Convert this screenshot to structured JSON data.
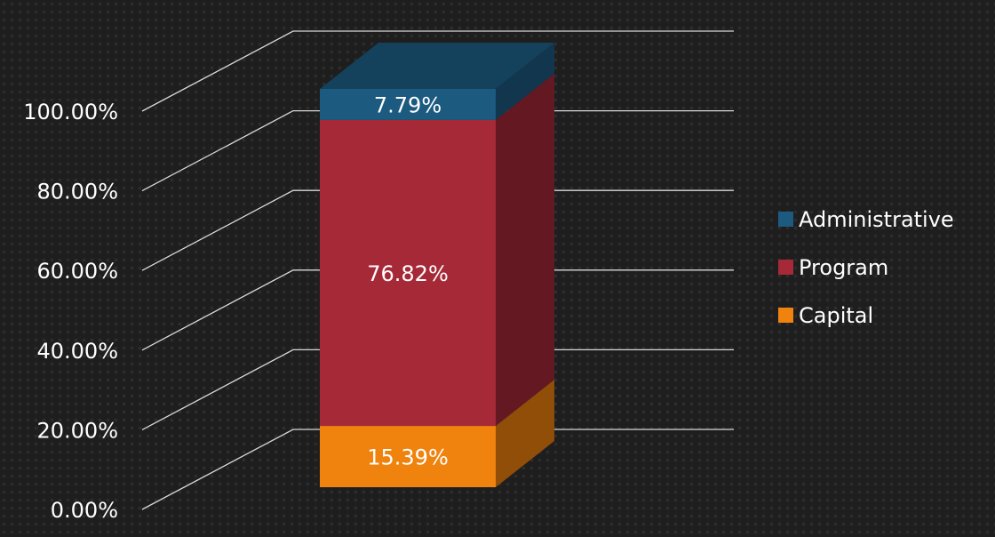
{
  "chart_data": {
    "type": "bar",
    "stacked": true,
    "three_d": true,
    "title": "",
    "xlabel": "",
    "ylabel": "",
    "categories": [
      ""
    ],
    "ylim": [
      0,
      100
    ],
    "y_ticks": [
      "0.00%",
      "20.00%",
      "40.00%",
      "60.00%",
      "80.00%",
      "100.00%"
    ],
    "grid": true,
    "legend_position": "right",
    "series": [
      {
        "name": "Capital",
        "values": [
          15.39
        ],
        "label": "15.39%",
        "color": "#f0820e"
      },
      {
        "name": "Program",
        "values": [
          76.82
        ],
        "label": "76.82%",
        "color": "#a62938"
      },
      {
        "name": "Administrative",
        "values": [
          7.79
        ],
        "label": "7.79%",
        "color": "#1c5a80"
      }
    ],
    "legend_order": [
      "Administrative",
      "Program",
      "Capital"
    ]
  }
}
